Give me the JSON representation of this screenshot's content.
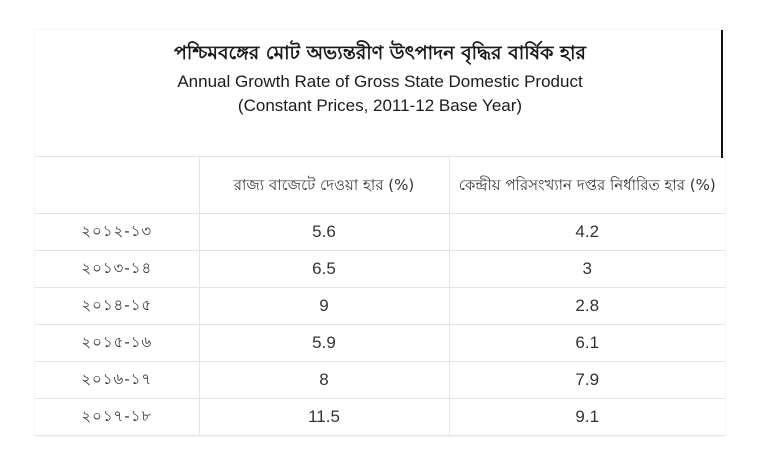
{
  "title": {
    "bengali": "পশ্চিমবঙ্গের মোট অভ্যন্তরীণ উৎপাদন বৃদ্ধির বার্ষিক হার",
    "english_line1": "Annual Growth Rate of Gross State Domestic Product",
    "english_line2": "(Constant Prices, 2011-12 Base Year)"
  },
  "table": {
    "headers": [
      "",
      "রাজ্য বাজেটে দেওয়া হার (%)",
      "কেন্দ্রীয় পরিসংখ্যান দপ্তর নির্ধারিত হার (%)"
    ],
    "rows": [
      [
        "২০১২-১৩",
        "5.6",
        "4.2"
      ],
      [
        "২০১৩-১৪",
        "6.5",
        "3"
      ],
      [
        "২০১৪-১৫",
        "9",
        "2.8"
      ],
      [
        "২০১৫-১৬",
        "5.9",
        "6.1"
      ],
      [
        "২০১৬-১৭",
        "8",
        "7.9"
      ],
      [
        "২০১৭-১৮",
        "11.5",
        "9.1"
      ]
    ]
  }
}
